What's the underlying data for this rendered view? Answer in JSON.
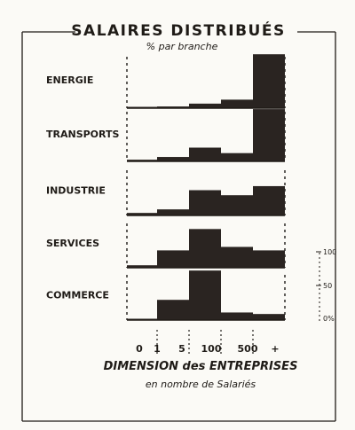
{
  "chart_data": {
    "type": "bar",
    "title": "SALAIRES DISTRIBUÉS",
    "subtitle": "% par branche",
    "xlabel": "DIMENSION des ENTREPRISES",
    "xlabel_sub": "en nombre de Salariés",
    "x_tick_labels": [
      "0",
      "1",
      "5",
      "100",
      "500",
      "+"
    ],
    "scale_labels": [
      "100",
      "50",
      "0%"
    ],
    "ylim": [
      0,
      100
    ],
    "bar_style": "step",
    "color": "#2a2421",
    "series": [
      {
        "name": "ENERGIE",
        "values": [
          1,
          3,
          8,
          15,
          95
        ]
      },
      {
        "name": "TRANSPORTS",
        "values": [
          3,
          8,
          25,
          15,
          95
        ]
      },
      {
        "name": "INDUSTRIE",
        "values": [
          5,
          12,
          50,
          40,
          58
        ]
      },
      {
        "name": "SERVICES",
        "values": [
          5,
          35,
          78,
          42,
          35
        ]
      },
      {
        "name": "COMMERCE",
        "values": [
          2,
          40,
          98,
          15,
          12
        ]
      }
    ]
  }
}
